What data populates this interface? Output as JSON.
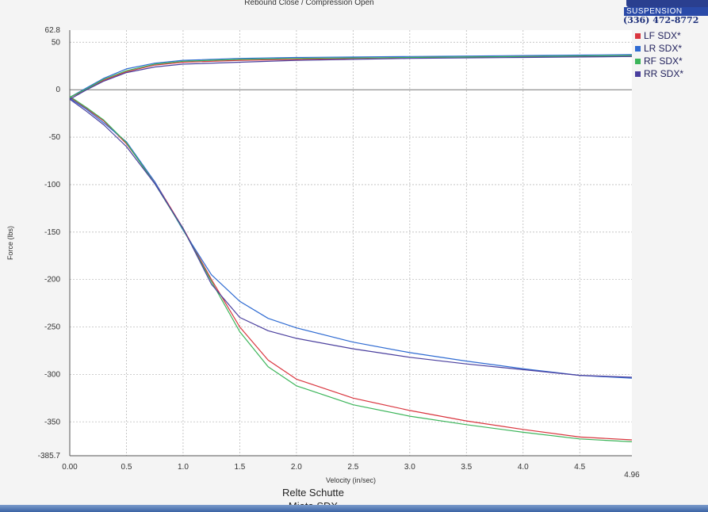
{
  "header": {
    "title": "Rebound Close / Compression Open",
    "brand_band": "SUSPENSION",
    "phone": "(336) 472-8772"
  },
  "footer": {
    "caption_line1": "Relte Schutte",
    "caption_line2": "Miata SDX"
  },
  "chart_data": {
    "type": "line",
    "xlabel": "Velocity (in/sec)",
    "ylabel": "Force (lbs)",
    "xlim": [
      0,
      4.96
    ],
    "ylim": [
      -385.7,
      62.8
    ],
    "x_ticks": [
      "0.00",
      "0.5",
      "1.0",
      "1.5",
      "2.0",
      "2.5",
      "3.0",
      "3.5",
      "4.0",
      "4.5",
      "4.96"
    ],
    "y_ticks": [
      "62.8",
      "50",
      "0",
      "-50",
      "-100",
      "-150",
      "-200",
      "-250",
      "-300",
      "-350",
      "-385.7"
    ],
    "grid": true,
    "legend_position": "right",
    "series": [
      {
        "name": "LF SDX*",
        "color": "#d9353e",
        "rebound": {
          "x": [
            0,
            0.15,
            0.3,
            0.5,
            0.75,
            1.0,
            1.5,
            2.0,
            3.0,
            4.0,
            4.96
          ],
          "y": [
            -8,
            0,
            10,
            19,
            26,
            29,
            31,
            32,
            34,
            35,
            35
          ]
        },
        "compression": {
          "x": [
            0,
            0.15,
            0.3,
            0.5,
            0.75,
            1.0,
            1.25,
            1.5,
            1.75,
            2.0,
            2.5,
            3.0,
            3.5,
            4.0,
            4.5,
            4.96
          ],
          "y": [
            -8,
            -20,
            -33,
            -57,
            -97,
            -146,
            -200,
            -250,
            -285,
            -305,
            -325,
            -338,
            -349,
            -358,
            -366,
            -369
          ]
        }
      },
      {
        "name": "LR SDX*",
        "color": "#2f6bd2",
        "rebound": {
          "x": [
            0,
            0.15,
            0.3,
            0.5,
            0.75,
            1.0,
            1.5,
            2.0,
            3.0,
            4.0,
            4.96
          ],
          "y": [
            -8,
            2,
            12,
            22,
            28,
            31,
            33,
            34,
            35,
            36,
            37
          ]
        },
        "compression": {
          "x": [
            0,
            0.15,
            0.3,
            0.5,
            0.75,
            1.0,
            1.25,
            1.5,
            1.75,
            2.0,
            2.5,
            3.0,
            3.5,
            4.0,
            4.5,
            4.96
          ],
          "y": [
            -9,
            -21,
            -35,
            -55,
            -97,
            -148,
            -195,
            -223,
            -241,
            -251,
            -266,
            -277,
            -286,
            -294,
            -301,
            -304
          ]
        }
      },
      {
        "name": "RF SDX*",
        "color": "#3cb55a",
        "rebound": {
          "x": [
            0,
            0.15,
            0.3,
            0.5,
            0.75,
            1.0,
            1.5,
            2.0,
            3.0,
            4.0,
            4.96
          ],
          "y": [
            -8,
            1,
            11,
            20,
            27,
            30,
            32,
            33,
            34,
            35,
            36
          ]
        },
        "compression": {
          "x": [
            0,
            0.15,
            0.3,
            0.5,
            0.75,
            1.0,
            1.25,
            1.5,
            1.75,
            2.0,
            2.5,
            3.0,
            3.5,
            4.0,
            4.5,
            4.96
          ],
          "y": [
            -7,
            -19,
            -32,
            -56,
            -99,
            -147,
            -202,
            -255,
            -292,
            -312,
            -332,
            -344,
            -353,
            -361,
            -368,
            -371
          ]
        }
      },
      {
        "name": "RR SDX*",
        "color": "#4a3f9e",
        "rebound": {
          "x": [
            0,
            0.15,
            0.3,
            0.5,
            0.75,
            1.0,
            1.5,
            2.0,
            3.0,
            4.0,
            4.96
          ],
          "y": [
            -10,
            0,
            9,
            18,
            24,
            27,
            29,
            31,
            33,
            34,
            35
          ]
        },
        "compression": {
          "x": [
            0,
            0.15,
            0.3,
            0.5,
            0.75,
            1.0,
            1.25,
            1.5,
            1.75,
            2.0,
            2.5,
            3.0,
            3.5,
            4.0,
            4.5,
            4.96
          ],
          "y": [
            -10,
            -23,
            -37,
            -60,
            -99,
            -146,
            -205,
            -240,
            -254,
            -262,
            -273,
            -282,
            -289,
            -295,
            -301,
            -303
          ]
        }
      }
    ]
  }
}
